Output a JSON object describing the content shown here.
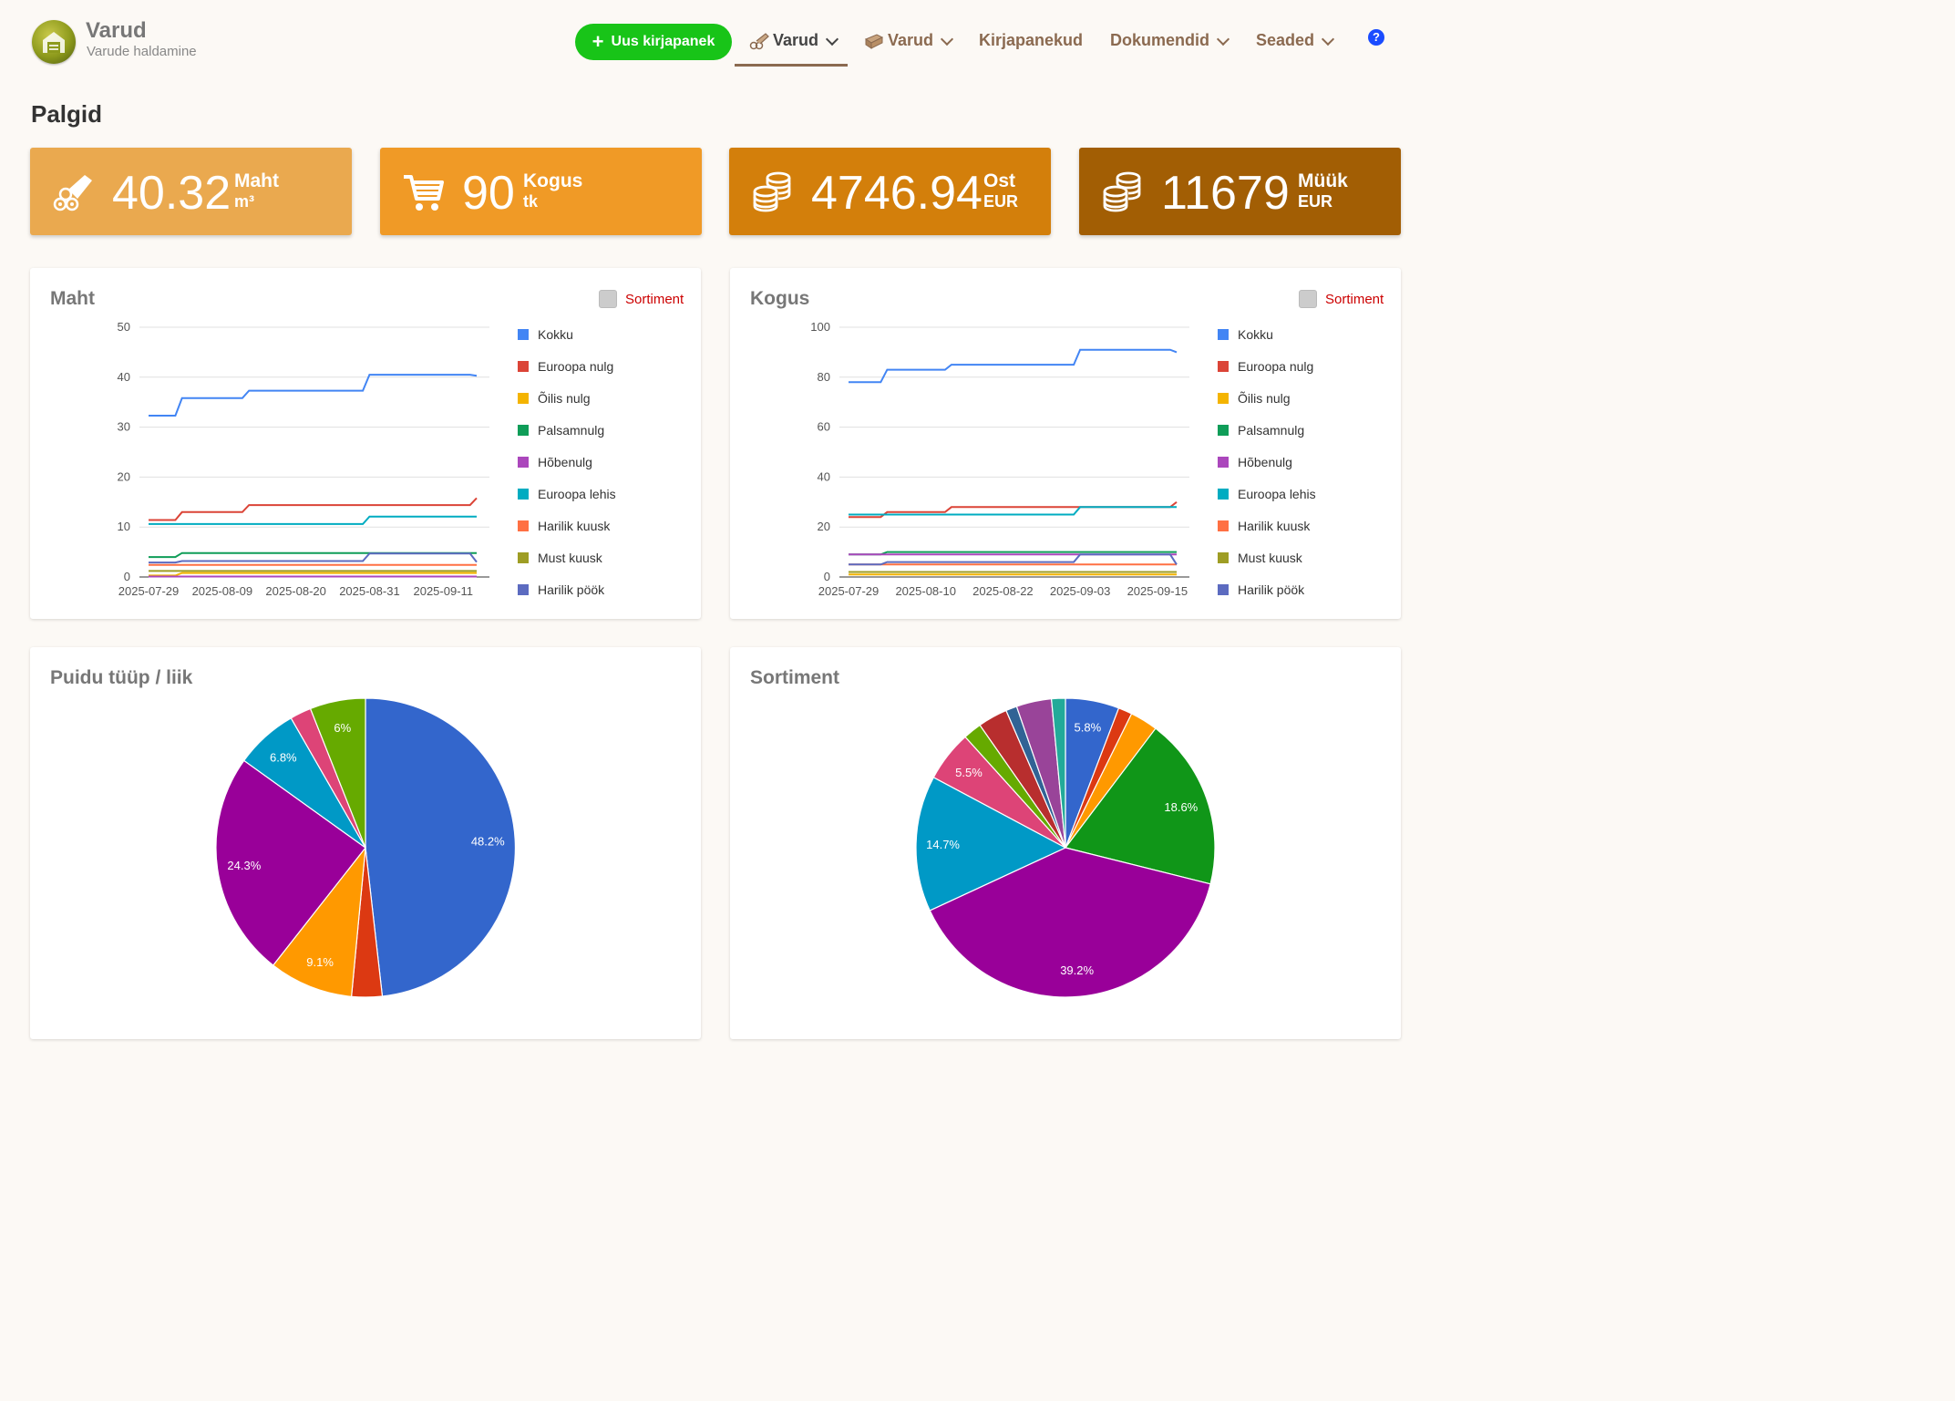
{
  "app": {
    "title": "Varud",
    "subtitle": "Varude haldamine"
  },
  "nav": {
    "new_button": "Uus kirjapanek",
    "items": [
      {
        "label": "Varud",
        "icon": "logs-icon",
        "active": true
      },
      {
        "label": "Varud",
        "icon": "planks-icon",
        "active": false
      },
      {
        "label": "Kirjapanekud"
      },
      {
        "label": "Dokumendid"
      },
      {
        "label": "Seaded"
      }
    ],
    "help": "?"
  },
  "page_title": "Palgid",
  "stats": [
    {
      "value": "40.32",
      "label": "Maht",
      "unit": "m³",
      "icon": "logs-icon",
      "color": "#eaa94f"
    },
    {
      "value": "90",
      "label": "Kogus",
      "unit": "tk",
      "icon": "cart-icon",
      "color": "#f09a26"
    },
    {
      "value": "4746.94",
      "label": "Ost",
      "unit": "EUR",
      "icon": "coins-icon",
      "color": "#d37f0b"
    },
    {
      "value": "11679",
      "label": "Müük",
      "unit": "EUR",
      "icon": "coins-icon",
      "color": "#a25e04"
    }
  ],
  "line_panels": {
    "toggle_label": "Sortiment",
    "legend": [
      "Kokku",
      "Euroopa nulg",
      "Õilis nulg",
      "Palsamnulg",
      "Hõbenulg",
      "Euroopa lehis",
      "Harilik kuusk",
      "Must kuusk",
      "Harilik pöök"
    ],
    "colors": [
      "#4285f4",
      "#db4437",
      "#f4b400",
      "#0f9d58",
      "#ab47bc",
      "#00acc1",
      "#ff7043",
      "#9e9d24",
      "#5c6bc0"
    ]
  },
  "pie_panels": [
    {
      "title": "Puidu tüüp / liik"
    },
    {
      "title": "Sortiment"
    }
  ],
  "chart_data": [
    {
      "type": "line",
      "title": "Maht",
      "ylim": [
        0,
        50
      ],
      "yticks": [
        0,
        10,
        20,
        30,
        40,
        50
      ],
      "xticks": [
        "2025-07-29",
        "2025-08-09",
        "2025-08-20",
        "2025-08-31",
        "2025-09-11"
      ],
      "x": [
        "2025-07-29",
        "2025-08-02",
        "2025-08-03",
        "2025-08-12",
        "2025-08-13",
        "2025-08-30",
        "2025-08-31",
        "2025-09-15",
        "2025-09-16"
      ],
      "series": [
        {
          "name": "Kokku",
          "values": [
            32.3,
            32.3,
            35.8,
            35.8,
            37.3,
            37.3,
            40.5,
            40.5,
            40.3
          ]
        },
        {
          "name": "Euroopa nulg",
          "values": [
            11.4,
            11.4,
            13.0,
            13.0,
            14.4,
            14.4,
            14.4,
            14.4,
            15.8
          ]
        },
        {
          "name": "Õilis nulg",
          "values": [
            0.3,
            0.3,
            0.8,
            0.8,
            0.8,
            0.8,
            0.8,
            0.8,
            0.8
          ]
        },
        {
          "name": "Palsamnulg",
          "values": [
            4.0,
            4.0,
            4.8,
            4.8,
            4.8,
            4.8,
            4.8,
            4.8,
            4.8
          ]
        },
        {
          "name": "Hõbenulg",
          "values": [
            0.1,
            0.1,
            0.1,
            0.1,
            0.1,
            0.1,
            0.1,
            0.1,
            0.1
          ]
        },
        {
          "name": "Euroopa lehis",
          "values": [
            10.6,
            10.6,
            10.6,
            10.6,
            10.6,
            10.6,
            12.1,
            12.1,
            12.1
          ]
        },
        {
          "name": "Harilik kuusk",
          "values": [
            2.4,
            2.4,
            2.4,
            2.4,
            2.4,
            2.4,
            2.4,
            2.4,
            2.4
          ]
        },
        {
          "name": "Must kuusk",
          "values": [
            1.2,
            1.2,
            1.2,
            1.2,
            1.2,
            1.2,
            1.2,
            1.2,
            1.2
          ]
        },
        {
          "name": "Harilik pöök",
          "values": [
            2.9,
            2.9,
            3.2,
            3.2,
            3.2,
            3.2,
            4.7,
            4.7,
            3.0
          ]
        }
      ]
    },
    {
      "type": "line",
      "title": "Kogus",
      "ylim": [
        0,
        100
      ],
      "yticks": [
        0,
        20,
        40,
        60,
        80,
        100
      ],
      "xticks": [
        "2025-07-29",
        "2025-08-10",
        "2025-08-22",
        "2025-09-03",
        "2025-09-15"
      ],
      "x": [
        "2025-07-29",
        "2025-08-03",
        "2025-08-04",
        "2025-08-13",
        "2025-08-14",
        "2025-09-02",
        "2025-09-03",
        "2025-09-17",
        "2025-09-18"
      ],
      "series": [
        {
          "name": "Kokku",
          "values": [
            78,
            78,
            83,
            83,
            85,
            85,
            91,
            91,
            90
          ]
        },
        {
          "name": "Euroopa nulg",
          "values": [
            24,
            24,
            26,
            26,
            28,
            28,
            28,
            28,
            30
          ]
        },
        {
          "name": "Õilis nulg",
          "values": [
            1,
            1,
            1,
            1,
            1,
            1,
            1,
            1,
            1
          ]
        },
        {
          "name": "Palsamnulg",
          "values": [
            9,
            9,
            10,
            10,
            10,
            10,
            10,
            10,
            10
          ]
        },
        {
          "name": "Hõbenulg",
          "values": [
            9,
            9,
            9,
            9,
            9,
            9,
            9,
            9,
            9
          ]
        },
        {
          "name": "Euroopa lehis",
          "values": [
            25,
            25,
            25,
            25,
            25,
            25,
            28,
            28,
            28
          ]
        },
        {
          "name": "Harilik kuusk",
          "values": [
            5,
            5,
            5,
            5,
            5,
            5,
            5,
            5,
            5
          ]
        },
        {
          "name": "Must kuusk",
          "values": [
            2,
            2,
            2,
            2,
            2,
            2,
            2,
            2,
            2
          ]
        },
        {
          "name": "Harilik pöök",
          "values": [
            5,
            5,
            6,
            6,
            6,
            6,
            9,
            9,
            5
          ]
        }
      ]
    },
    {
      "type": "pie",
      "title": "Puidu tüüp / liik",
      "values": [
        48.2,
        3.3,
        9.1,
        24.3,
        6.8,
        2.3,
        6.0
      ],
      "labels": [
        "48.2%",
        "",
        "9.1%",
        "24.3%",
        "6.8%",
        "",
        "6%"
      ],
      "colors": [
        "#3366cc",
        "#dc3912",
        "#ff9900",
        "#990099",
        "#0099c6",
        "#dd4477",
        "#66aa00"
      ]
    },
    {
      "type": "pie",
      "title": "Sortiment",
      "values": [
        5.8,
        1.5,
        3.0,
        18.6,
        39.2,
        14.7,
        5.5,
        2.0,
        3.2,
        1.2,
        3.8,
        1.5
      ],
      "labels": [
        "5.8%",
        "",
        "",
        "18.6%",
        "39.2%",
        "14.7%",
        "5.5%",
        "",
        "",
        "",
        "",
        ""
      ],
      "colors": [
        "#3366cc",
        "#dc3912",
        "#ff9900",
        "#109618",
        "#990099",
        "#0099c6",
        "#dd4477",
        "#66aa00",
        "#b82e2e",
        "#316395",
        "#994499",
        "#22aa99"
      ]
    }
  ]
}
